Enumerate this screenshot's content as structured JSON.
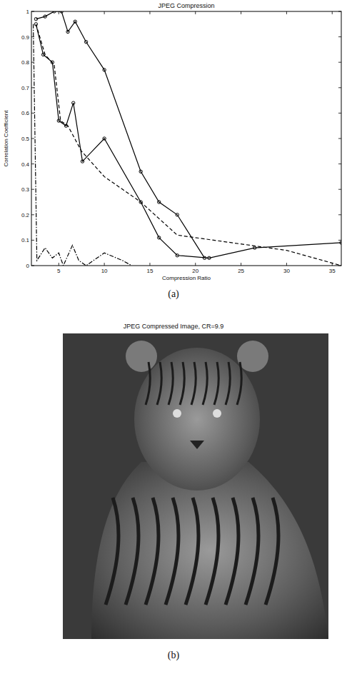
{
  "chart_data": {
    "type": "line",
    "title": "JPEG Compression",
    "x_label": "Compression Ratio",
    "y_label": "Correlation Coefficient",
    "xlim": [
      2,
      36
    ],
    "xticks": [
      5,
      10,
      15,
      20,
      25,
      30,
      35
    ],
    "ylim": [
      0,
      1
    ],
    "yticks": [
      0,
      0.1,
      0.2,
      0.3,
      0.4,
      0.5,
      0.6,
      0.7,
      0.8,
      0.9,
      1
    ],
    "grid": false,
    "series": [
      {
        "color": "#000000",
        "marker": "circle",
        "line_style": "solid",
        "x": [
          2.5,
          3.5,
          4.5,
          5.3,
          6.0,
          6.8,
          8.0,
          10.0,
          14.0,
          16.0,
          18.0,
          21.0
        ],
        "values": [
          0.97,
          0.98,
          1.0,
          1.0,
          0.92,
          0.96,
          0.88,
          0.77,
          0.37,
          0.25,
          0.2,
          0.03
        ]
      },
      {
        "color": "#000000",
        "marker": "circle",
        "line_style": "solid",
        "x": [
          2.5,
          3.3,
          4.3,
          5.0,
          5.8,
          6.6,
          7.6,
          10.0,
          14.0,
          16.0,
          18.0,
          21.5,
          26.5,
          36.0
        ],
        "values": [
          0.95,
          0.83,
          0.8,
          0.57,
          0.55,
          0.64,
          0.41,
          0.5,
          0.25,
          0.11,
          0.04,
          0.03,
          0.07,
          0.09
        ]
      },
      {
        "color": "#000000",
        "line_style": "dashed",
        "x": [
          2.5,
          3.5,
          4.5,
          5.2,
          6.0,
          7.5,
          10.0,
          14.0,
          18.0,
          22.0,
          30.0,
          36.0
        ],
        "values": [
          0.95,
          0.83,
          0.79,
          0.57,
          0.55,
          0.45,
          0.35,
          0.25,
          0.12,
          0.1,
          0.06,
          0.0
        ]
      },
      {
        "color": "#000000",
        "line_style": "dashdot",
        "x": [
          2.2,
          2.6,
          3.5,
          4.3,
          5.0,
          5.5,
          6.5,
          7.2,
          8.0,
          10.0,
          12.0,
          13.0
        ],
        "values": [
          0.95,
          0.02,
          0.07,
          0.03,
          0.05,
          0.0,
          0.08,
          0.02,
          0.0,
          0.05,
          0.02,
          0.0
        ]
      }
    ]
  },
  "figure": {
    "panel_a_label": "(a)",
    "image_title": "JPEG Compressed Image, CR=9.9",
    "panel_b_label": "(b)"
  }
}
